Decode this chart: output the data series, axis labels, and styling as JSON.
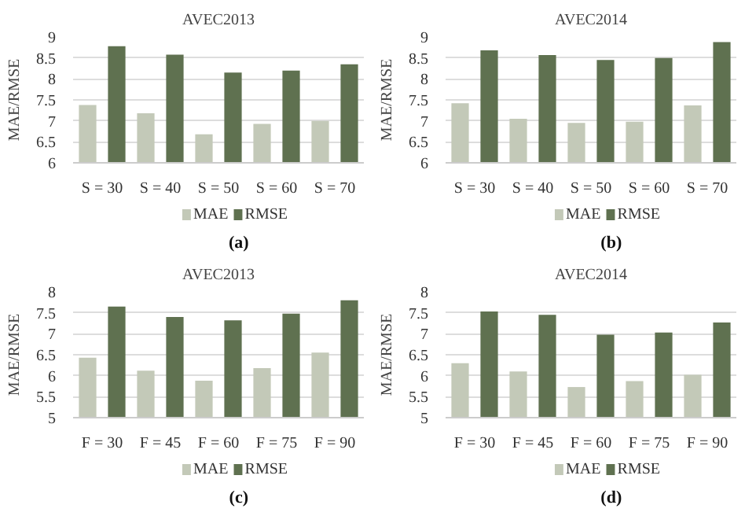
{
  "chart_data": [
    {
      "type": "bar",
      "title": "AVEC2013",
      "ylabel": "MAE/RMSE",
      "categories": [
        "S = 30",
        "S = 40",
        "S = 50",
        "S = 60",
        "S = 70"
      ],
      "series": [
        {
          "name": "MAE",
          "color": "#c3c9b8",
          "values": [
            7.38,
            7.18,
            6.68,
            6.93,
            7.0
          ]
        },
        {
          "name": "RMSE",
          "color": "#5f7150",
          "values": [
            8.78,
            8.58,
            8.15,
            8.2,
            8.35
          ]
        }
      ],
      "ylim": [
        6,
        9
      ],
      "yticks": [
        6,
        6.5,
        7,
        7.5,
        8,
        8.5,
        9
      ],
      "grid": "y",
      "legend": "bottom",
      "annotations": [
        "(a)"
      ]
    },
    {
      "type": "bar",
      "title": "AVEC2014",
      "ylabel": "MAE/RMSE",
      "categories": [
        "S = 30",
        "S = 40",
        "S = 50",
        "S = 60",
        "S = 70"
      ],
      "series": [
        {
          "name": "MAE",
          "color": "#c3c9b8",
          "values": [
            7.42,
            7.05,
            6.95,
            6.98,
            7.37
          ]
        },
        {
          "name": "RMSE",
          "color": "#5f7150",
          "values": [
            8.68,
            8.57,
            8.45,
            8.5,
            8.88
          ]
        }
      ],
      "ylim": [
        6,
        9
      ],
      "yticks": [
        6,
        6.5,
        7,
        7.5,
        8,
        8.5,
        9
      ],
      "grid": "y",
      "legend": "bottom",
      "annotations": [
        "(b)"
      ]
    },
    {
      "type": "bar",
      "title": "AVEC2013",
      "ylabel": "MAE/RMSE",
      "categories": [
        "F = 30",
        "F = 45",
        "F = 60",
        "F = 75",
        "F = 90"
      ],
      "series": [
        {
          "name": "MAE",
          "color": "#c3c9b8",
          "values": [
            6.43,
            6.12,
            5.88,
            6.18,
            6.55
          ]
        },
        {
          "name": "RMSE",
          "color": "#5f7150",
          "values": [
            7.65,
            7.4,
            7.32,
            7.48,
            7.8
          ]
        }
      ],
      "ylim": [
        5,
        8
      ],
      "yticks": [
        5,
        5.5,
        6,
        6.5,
        7,
        7.5,
        8
      ],
      "grid": "y",
      "legend": "bottom",
      "annotations": [
        "(c)"
      ]
    },
    {
      "type": "bar",
      "title": "AVEC2014",
      "ylabel": "MAE/RMSE",
      "categories": [
        "F = 30",
        "F = 45",
        "F = 60",
        "F = 75",
        "F = 90"
      ],
      "series": [
        {
          "name": "MAE",
          "color": "#c3c9b8",
          "values": [
            6.3,
            6.1,
            5.73,
            5.87,
            6.02
          ]
        },
        {
          "name": "RMSE",
          "color": "#5f7150",
          "values": [
            7.53,
            7.45,
            6.98,
            7.03,
            7.27
          ]
        }
      ],
      "ylim": [
        5,
        8
      ],
      "yticks": [
        5,
        5.5,
        6,
        6.5,
        7,
        7.5,
        8
      ],
      "grid": "y",
      "legend": "bottom",
      "annotations": [
        "(d)"
      ]
    }
  ]
}
